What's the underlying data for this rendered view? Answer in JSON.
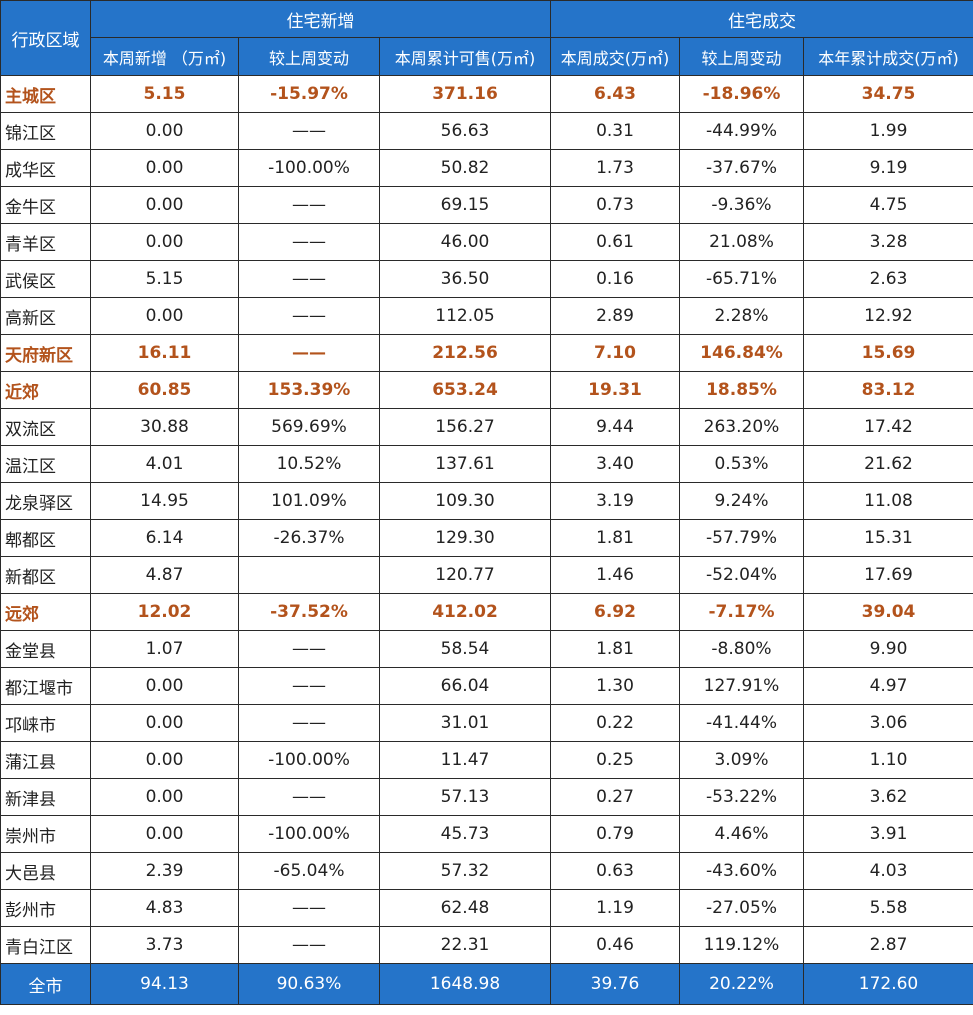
{
  "header": {
    "region_label": "行政区域",
    "group_new": "住宅新增",
    "group_deal": "住宅成交",
    "columns": [
      "本周新增 （万㎡)",
      "较上周变动",
      "本周累计可售(万㎡)",
      "本周成交(万㎡)",
      "较上周变动",
      "本年累计成交(万㎡)"
    ]
  },
  "rows": [
    {
      "name": "主城区",
      "highlight": true,
      "cells": [
        "5.15",
        "-15.97%",
        "371.16",
        "6.43",
        "-18.96%",
        "34.75"
      ]
    },
    {
      "name": "锦江区",
      "highlight": false,
      "cells": [
        "0.00",
        "——",
        "56.63",
        "0.31",
        "-44.99%",
        "1.99"
      ]
    },
    {
      "name": "成华区",
      "highlight": false,
      "cells": [
        "0.00",
        "-100.00%",
        "50.82",
        "1.73",
        "-37.67%",
        "9.19"
      ]
    },
    {
      "name": "金牛区",
      "highlight": false,
      "cells": [
        "0.00",
        "——",
        "69.15",
        "0.73",
        "-9.36%",
        "4.75"
      ]
    },
    {
      "name": "青羊区",
      "highlight": false,
      "cells": [
        "0.00",
        "——",
        "46.00",
        "0.61",
        "21.08%",
        "3.28"
      ]
    },
    {
      "name": "武侯区",
      "highlight": false,
      "cells": [
        "5.15",
        "——",
        "36.50",
        "0.16",
        "-65.71%",
        "2.63"
      ]
    },
    {
      "name": "高新区",
      "highlight": false,
      "cells": [
        "0.00",
        "——",
        "112.05",
        "2.89",
        "2.28%",
        "12.92"
      ]
    },
    {
      "name": "天府新区",
      "highlight": true,
      "cells": [
        "16.11",
        "——",
        "212.56",
        "7.10",
        "146.84%",
        "15.69"
      ]
    },
    {
      "name": "近郊",
      "highlight": true,
      "cells": [
        "60.85",
        "153.39%",
        "653.24",
        "19.31",
        "18.85%",
        "83.12"
      ]
    },
    {
      "name": "双流区",
      "highlight": false,
      "cells": [
        "30.88",
        "569.69%",
        "156.27",
        "9.44",
        "263.20%",
        "17.42"
      ]
    },
    {
      "name": "温江区",
      "highlight": false,
      "cells": [
        "4.01",
        "10.52%",
        "137.61",
        "3.40",
        "0.53%",
        "21.62"
      ]
    },
    {
      "name": "龙泉驿区",
      "highlight": false,
      "cells": [
        "14.95",
        "101.09%",
        "109.30",
        "3.19",
        "9.24%",
        "11.08"
      ]
    },
    {
      "name": "郫都区",
      "highlight": false,
      "cells": [
        "6.14",
        "-26.37%",
        "129.30",
        "1.81",
        "-57.79%",
        "15.31"
      ]
    },
    {
      "name": "新都区",
      "highlight": false,
      "cells": [
        "4.87",
        "",
        "120.77",
        "1.46",
        "-52.04%",
        "17.69"
      ]
    },
    {
      "name": "远郊",
      "highlight": true,
      "cells": [
        "12.02",
        "-37.52%",
        "412.02",
        "6.92",
        "-7.17%",
        "39.04"
      ]
    },
    {
      "name": "金堂县",
      "highlight": false,
      "cells": [
        "1.07",
        "——",
        "58.54",
        "1.81",
        "-8.80%",
        "9.90"
      ]
    },
    {
      "name": "都江堰市",
      "highlight": false,
      "cells": [
        "0.00",
        "——",
        "66.04",
        "1.30",
        "127.91%",
        "4.97"
      ]
    },
    {
      "name": "邛崃市",
      "highlight": false,
      "cells": [
        "0.00",
        "——",
        "31.01",
        "0.22",
        "-41.44%",
        "3.06"
      ]
    },
    {
      "name": "蒲江县",
      "highlight": false,
      "cells": [
        "0.00",
        "-100.00%",
        "11.47",
        "0.25",
        "3.09%",
        "1.10"
      ]
    },
    {
      "name": "新津县",
      "highlight": false,
      "cells": [
        "0.00",
        "——",
        "57.13",
        "0.27",
        "-53.22%",
        "3.62"
      ]
    },
    {
      "name": "崇州市",
      "highlight": false,
      "cells": [
        "0.00",
        "-100.00%",
        "45.73",
        "0.79",
        "4.46%",
        "3.91"
      ]
    },
    {
      "name": "大邑县",
      "highlight": false,
      "cells": [
        "2.39",
        "-65.04%",
        "57.32",
        "0.63",
        "-43.60%",
        "4.03"
      ]
    },
    {
      "name": "彭州市",
      "highlight": false,
      "cells": [
        "4.83",
        "——",
        "62.48",
        "1.19",
        "-27.05%",
        "5.58"
      ]
    },
    {
      "name": "青白江区",
      "highlight": false,
      "cells": [
        "3.73",
        "——",
        "22.31",
        "0.46",
        "119.12%",
        "2.87"
      ]
    }
  ],
  "total": {
    "name": "全市",
    "cells": [
      "94.13",
      "90.63%",
      "1648.98",
      "39.76",
      "20.22%",
      "172.60"
    ]
  },
  "colors": {
    "header_bg": "#2574c9",
    "highlight_text": "#b3531c",
    "border": "#2a2a2a"
  }
}
